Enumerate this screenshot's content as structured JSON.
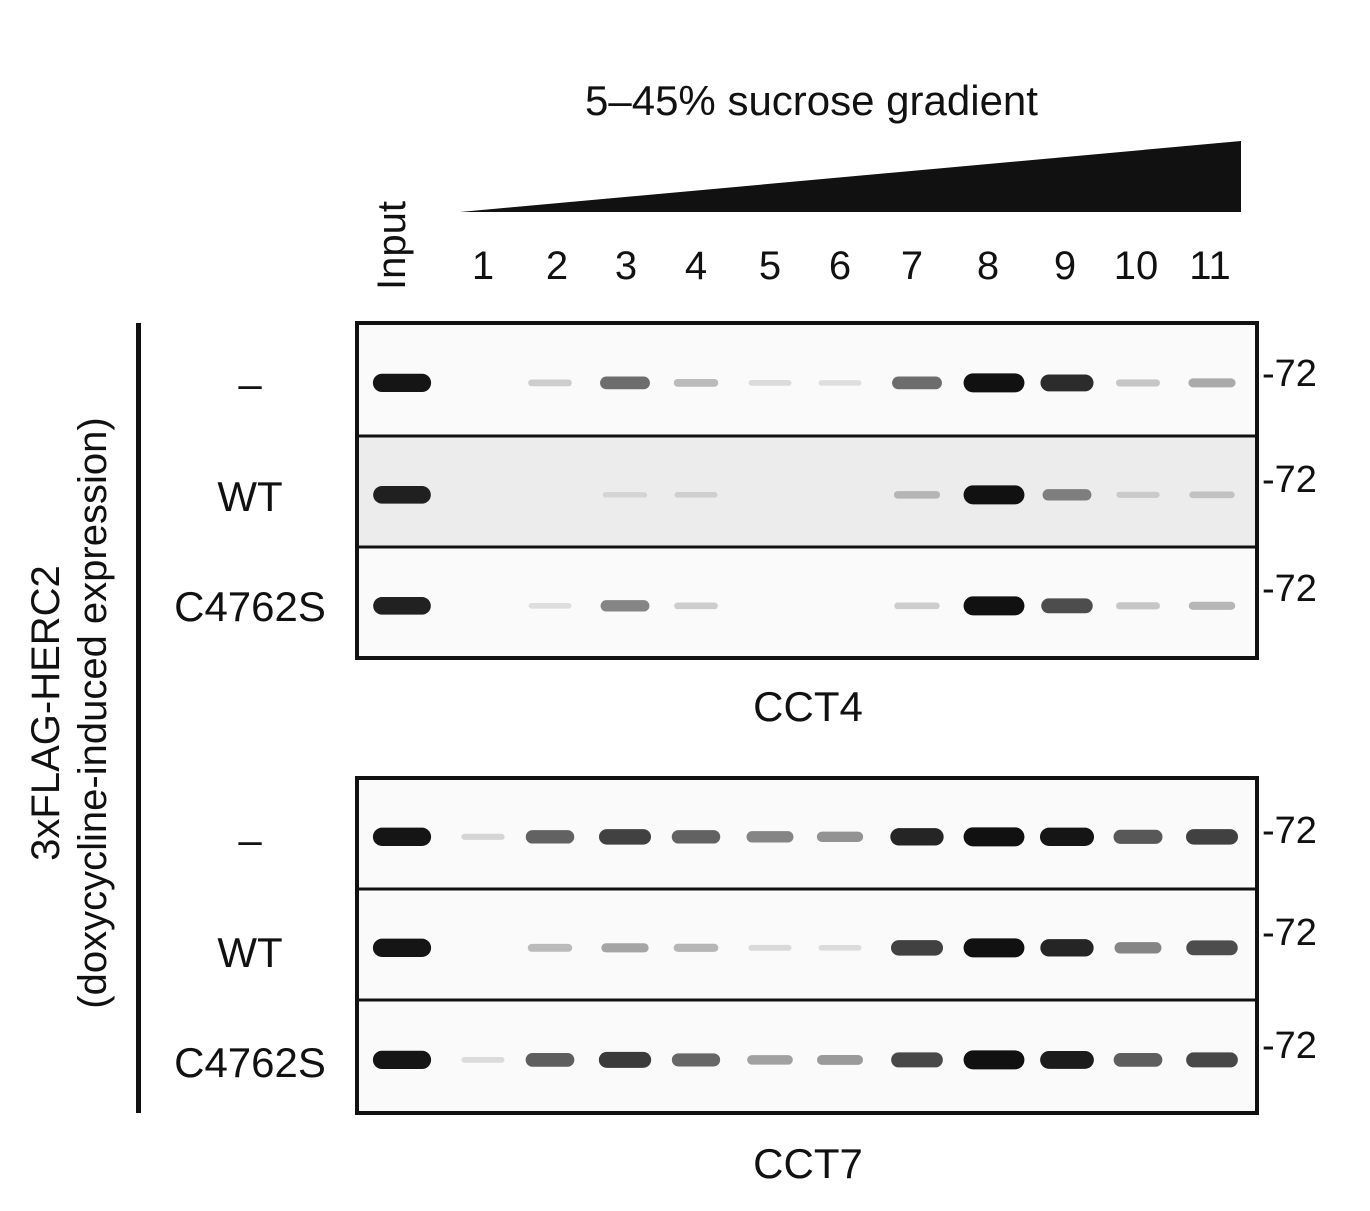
{
  "title": "5–45% sucrose gradient",
  "side_label": {
    "line1": "3xFLAG-HERC2",
    "line2": "(doxycycline-induced expression)"
  },
  "input_label": "Input",
  "lanes": [
    "1",
    "2",
    "3",
    "4",
    "5",
    "6",
    "7",
    "8",
    "9",
    "10",
    "11"
  ],
  "row_labels": [
    "–",
    "WT",
    "C4762S",
    "–",
    "WT",
    "C4762S"
  ],
  "marker_label": "-72",
  "antibodies": [
    "CCT4",
    "CCT7"
  ],
  "colors": {
    "ink": "#111111",
    "panel_bg": "#fafafa",
    "panel_bg_dim": "#ececec"
  },
  "blots": [
    {
      "antibody": "CCT4",
      "rows": [
        {
          "condition": "–",
          "band_intensity": [
            0.95,
            0.0,
            0.12,
            0.55,
            0.2,
            0.05,
            0.04,
            0.55,
            1.0,
            0.85,
            0.15,
            0.28
          ],
          "background": "light"
        },
        {
          "condition": "WT",
          "band_intensity": [
            0.9,
            0.0,
            0.0,
            0.03,
            0.05,
            0.0,
            0.0,
            0.18,
            1.0,
            0.45,
            0.08,
            0.12
          ],
          "background": "dim"
        },
        {
          "condition": "C4762S",
          "band_intensity": [
            0.9,
            0.0,
            0.04,
            0.45,
            0.12,
            0.0,
            0.0,
            0.12,
            1.0,
            0.7,
            0.15,
            0.22
          ],
          "background": "light"
        }
      ]
    },
    {
      "antibody": "CCT7",
      "rows": [
        {
          "condition": "–",
          "band_intensity": [
            0.95,
            0.08,
            0.6,
            0.75,
            0.6,
            0.45,
            0.38,
            0.88,
            1.0,
            0.95,
            0.65,
            0.75
          ],
          "background": "light"
        },
        {
          "condition": "WT",
          "band_intensity": [
            0.95,
            0.0,
            0.2,
            0.3,
            0.22,
            0.06,
            0.05,
            0.75,
            1.0,
            0.88,
            0.45,
            0.7
          ],
          "background": "light"
        },
        {
          "condition": "C4762S",
          "band_intensity": [
            0.95,
            0.05,
            0.62,
            0.78,
            0.58,
            0.32,
            0.35,
            0.72,
            1.0,
            0.92,
            0.62,
            0.72
          ],
          "background": "light"
        }
      ]
    }
  ]
}
